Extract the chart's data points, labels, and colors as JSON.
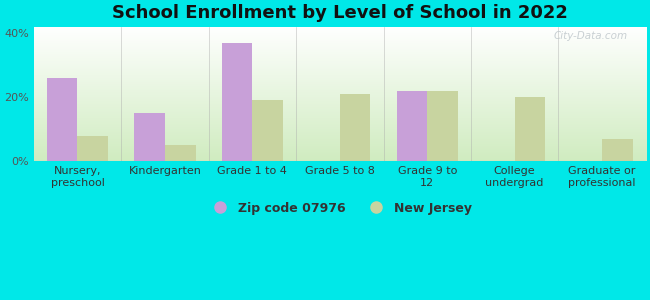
{
  "title": "School Enrollment by Level of School in 2022",
  "categories": [
    "Nursery,\npreschool",
    "Kindergarten",
    "Grade 1 to 4",
    "Grade 5 to 8",
    "Grade 9 to\n12",
    "College\nundergrad",
    "Graduate or\nprofessional"
  ],
  "zip_values": [
    26,
    15,
    37,
    0,
    22,
    0,
    0
  ],
  "nj_values": [
    8,
    5,
    19,
    21,
    22,
    20,
    7
  ],
  "zip_color": "#c8a0d8",
  "nj_color": "#c8d4a0",
  "ylim": [
    0,
    42
  ],
  "yticks": [
    0,
    20,
    40
  ],
  "ytick_labels": [
    "0%",
    "20%",
    "40%"
  ],
  "background_color": "#00e8e8",
  "legend_zip_label": "Zip code 07976",
  "legend_nj_label": "New Jersey",
  "watermark": "City-Data.com",
  "bar_width": 0.35,
  "title_fontsize": 13,
  "tick_fontsize": 8,
  "legend_fontsize": 9
}
